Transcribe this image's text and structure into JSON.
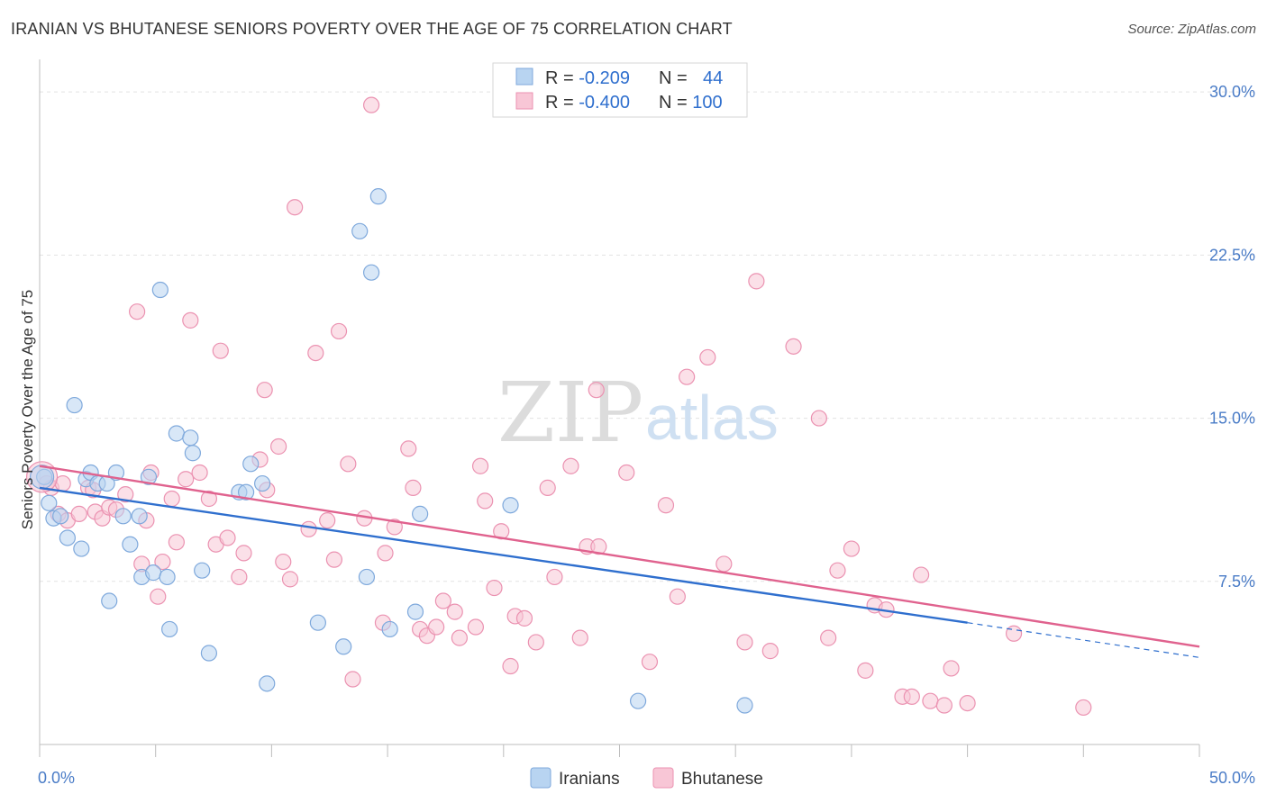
{
  "title": "IRANIAN VS BHUTANESE SENIORS POVERTY OVER THE AGE OF 75 CORRELATION CHART",
  "source": "Source: ZipAtlas.com",
  "watermark": {
    "zip": "ZIP",
    "atlas": "atlas"
  },
  "legend_box": {
    "rows": [
      {
        "r_label": "R = ",
        "r_value": "-0.209",
        "n_label": "N = ",
        "n_value": "44"
      },
      {
        "r_label": "R = ",
        "r_value": "-0.400",
        "n_label": "N = ",
        "n_value": "100"
      }
    ]
  },
  "bottom_legend": [
    "Iranians",
    "Bhutanese"
  ],
  "colors": {
    "iranians_fill": "#b8d4f1",
    "iranians_stroke": "#7fa9dc",
    "iranians_line": "#2f6fce",
    "bhutanese_fill": "#f8c6d6",
    "bhutanese_stroke": "#eb92b1",
    "bhutanese_line": "#e0628e",
    "tick_text": "#4a7cc7"
  },
  "chart_data": {
    "type": "scatter",
    "xlabel": "",
    "ylabel": "Seniors Poverty Over the Age of 75",
    "xlim": [
      0,
      50
    ],
    "ylim": [
      0,
      31
    ],
    "x_tick_labels": [
      "0.0%",
      "50.0%"
    ],
    "y_ticks": [
      7.5,
      15.0,
      22.5,
      30.0
    ],
    "y_tick_labels": [
      "7.5%",
      "15.0%",
      "22.5%",
      "30.0%"
    ],
    "grid": true,
    "series": [
      {
        "name": "Iranians",
        "r": -0.209,
        "n": 44,
        "trend": {
          "x": [
            0,
            40
          ],
          "y": [
            11.8,
            5.6
          ]
        },
        "trend_dashed": {
          "x": [
            40,
            50
          ],
          "y": [
            5.6,
            4.0
          ]
        },
        "points": [
          [
            0.2,
            12.3
          ],
          [
            0.4,
            11.1
          ],
          [
            0.6,
            10.4
          ],
          [
            0.9,
            10.5
          ],
          [
            1.2,
            9.5
          ],
          [
            1.5,
            15.6
          ],
          [
            1.8,
            9.0
          ],
          [
            2.0,
            12.2
          ],
          [
            2.2,
            12.5
          ],
          [
            2.5,
            12.0
          ],
          [
            2.9,
            12.0
          ],
          [
            3.3,
            12.5
          ],
          [
            3.6,
            10.5
          ],
          [
            3.9,
            9.2
          ],
          [
            4.3,
            10.5
          ],
          [
            4.4,
            7.7
          ],
          [
            4.7,
            12.3
          ],
          [
            4.9,
            7.9
          ],
          [
            5.2,
            20.9
          ],
          [
            5.5,
            7.7
          ],
          [
            3.0,
            6.6
          ],
          [
            5.6,
            5.3
          ],
          [
            5.9,
            14.3
          ],
          [
            6.5,
            14.1
          ],
          [
            6.6,
            13.4
          ],
          [
            7.0,
            8.0
          ],
          [
            7.3,
            4.2
          ],
          [
            8.6,
            11.6
          ],
          [
            8.9,
            11.6
          ],
          [
            9.1,
            12.9
          ],
          [
            9.6,
            12.0
          ],
          [
            9.8,
            2.8
          ],
          [
            12.0,
            5.6
          ],
          [
            13.1,
            4.5
          ],
          [
            13.8,
            23.6
          ],
          [
            14.1,
            7.7
          ],
          [
            14.3,
            21.7
          ],
          [
            14.6,
            25.2
          ],
          [
            15.1,
            5.3
          ],
          [
            16.2,
            6.1
          ],
          [
            16.4,
            10.6
          ],
          [
            20.3,
            11.0
          ],
          [
            25.8,
            2.0
          ],
          [
            30.4,
            1.8
          ]
        ]
      },
      {
        "name": "Bhutanese",
        "r": -0.4,
        "n": 100,
        "trend": {
          "x": [
            0,
            50
          ],
          "y": [
            12.8,
            4.5
          ]
        },
        "points": [
          [
            0.3,
            12.0
          ],
          [
            0.5,
            11.8
          ],
          [
            0.8,
            10.6
          ],
          [
            1.0,
            12.0
          ],
          [
            1.2,
            10.3
          ],
          [
            1.7,
            10.6
          ],
          [
            2.1,
            11.8
          ],
          [
            2.3,
            11.7
          ],
          [
            2.4,
            10.7
          ],
          [
            2.7,
            10.4
          ],
          [
            3.0,
            10.9
          ],
          [
            3.3,
            10.8
          ],
          [
            3.7,
            11.5
          ],
          [
            4.2,
            19.9
          ],
          [
            4.4,
            8.3
          ],
          [
            4.6,
            10.3
          ],
          [
            4.8,
            12.5
          ],
          [
            5.1,
            6.8
          ],
          [
            5.3,
            8.4
          ],
          [
            5.7,
            11.3
          ],
          [
            5.9,
            9.3
          ],
          [
            6.3,
            12.2
          ],
          [
            6.5,
            19.5
          ],
          [
            6.9,
            12.5
          ],
          [
            7.3,
            11.3
          ],
          [
            7.6,
            9.2
          ],
          [
            7.8,
            18.1
          ],
          [
            8.1,
            9.5
          ],
          [
            8.6,
            7.7
          ],
          [
            8.8,
            8.8
          ],
          [
            9.5,
            13.1
          ],
          [
            9.8,
            11.7
          ],
          [
            9.7,
            16.3
          ],
          [
            10.3,
            13.7
          ],
          [
            10.5,
            8.4
          ],
          [
            10.8,
            7.6
          ],
          [
            11.0,
            24.7
          ],
          [
            11.6,
            9.9
          ],
          [
            11.9,
            18.0
          ],
          [
            12.4,
            10.3
          ],
          [
            12.7,
            8.5
          ],
          [
            12.9,
            19.0
          ],
          [
            13.3,
            12.9
          ],
          [
            13.5,
            3.0
          ],
          [
            14.0,
            10.4
          ],
          [
            14.3,
            29.4
          ],
          [
            14.8,
            5.6
          ],
          [
            14.9,
            8.8
          ],
          [
            15.3,
            10.0
          ],
          [
            15.9,
            13.6
          ],
          [
            16.1,
            11.8
          ],
          [
            16.4,
            5.3
          ],
          [
            16.7,
            5.0
          ],
          [
            17.1,
            5.4
          ],
          [
            17.4,
            6.6
          ],
          [
            17.9,
            6.1
          ],
          [
            18.1,
            4.9
          ],
          [
            18.8,
            5.4
          ],
          [
            19.0,
            12.8
          ],
          [
            19.2,
            11.2
          ],
          [
            19.6,
            7.2
          ],
          [
            19.9,
            9.8
          ],
          [
            20.3,
            3.6
          ],
          [
            20.5,
            5.9
          ],
          [
            20.9,
            5.8
          ],
          [
            21.4,
            4.7
          ],
          [
            21.9,
            11.8
          ],
          [
            22.2,
            7.7
          ],
          [
            22.9,
            12.8
          ],
          [
            23.3,
            4.9
          ],
          [
            23.6,
            9.1
          ],
          [
            24.0,
            16.3
          ],
          [
            24.1,
            9.1
          ],
          [
            25.3,
            12.5
          ],
          [
            26.3,
            3.8
          ],
          [
            27.0,
            11.0
          ],
          [
            27.5,
            6.8
          ],
          [
            27.9,
            16.9
          ],
          [
            28.8,
            17.8
          ],
          [
            29.5,
            8.3
          ],
          [
            30.4,
            4.7
          ],
          [
            30.9,
            21.3
          ],
          [
            31.5,
            4.3
          ],
          [
            32.5,
            18.3
          ],
          [
            33.6,
            15.0
          ],
          [
            34.0,
            4.9
          ],
          [
            34.4,
            8.0
          ],
          [
            35.0,
            9.0
          ],
          [
            35.6,
            3.4
          ],
          [
            36.0,
            6.4
          ],
          [
            36.5,
            6.2
          ],
          [
            37.2,
            2.2
          ],
          [
            37.6,
            2.2
          ],
          [
            38.0,
            7.8
          ],
          [
            38.4,
            2.0
          ],
          [
            39.0,
            1.8
          ],
          [
            39.3,
            3.5
          ],
          [
            40.0,
            1.9
          ],
          [
            42.0,
            5.1
          ],
          [
            45.0,
            1.7
          ]
        ]
      }
    ]
  }
}
